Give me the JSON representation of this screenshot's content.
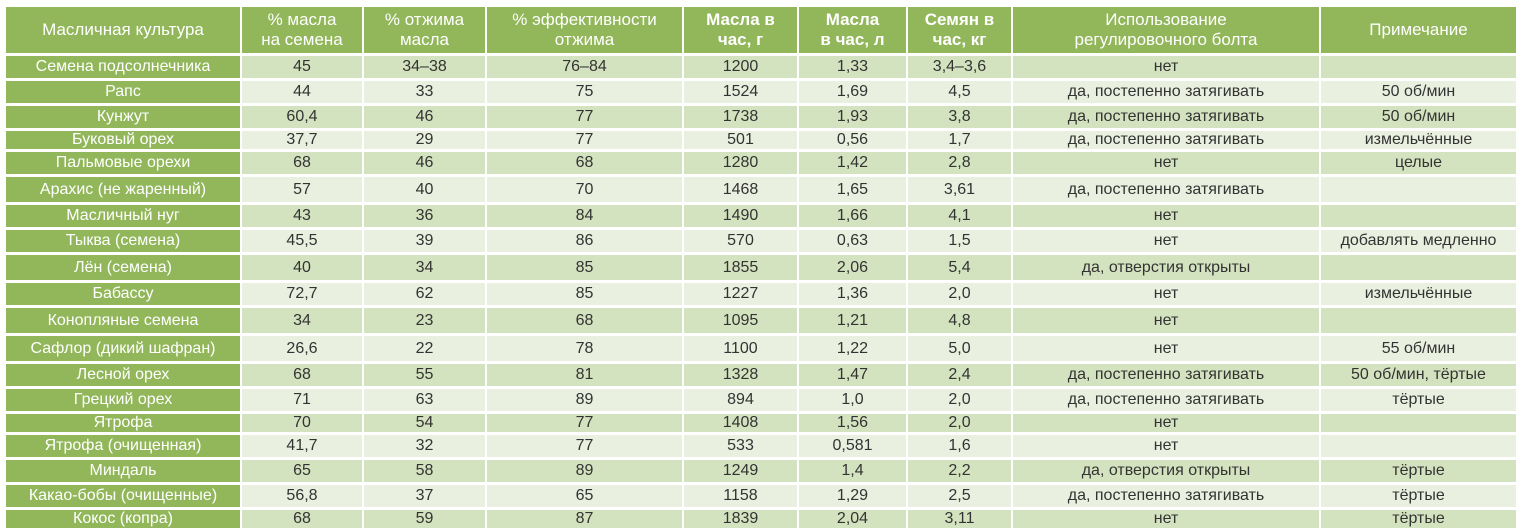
{
  "headers": [
    {
      "line1": "Масличная культура",
      "line2": ""
    },
    {
      "line1": "% масла",
      "line2": "на семена"
    },
    {
      "line1": "% отжима",
      "line2": "масла"
    },
    {
      "line1": "% эффективности",
      "line2": "отжима"
    },
    {
      "line1": "Масла в",
      "line2": "час, г"
    },
    {
      "line1": "Масла",
      "line2": "в час, л"
    },
    {
      "line1": "Семян в",
      "line2": "час, кг"
    },
    {
      "line1": "Использование",
      "line2": "регулировочного болта"
    },
    {
      "line1": "Примечание",
      "line2": ""
    }
  ],
  "rows": [
    [
      "Семена подсолнечника",
      "45",
      "34–38",
      "76–84",
      "1200",
      "1,33",
      "3,4–3,6",
      "нет",
      ""
    ],
    [
      "Рапс",
      "44",
      "33",
      "75",
      "1524",
      "1,69",
      "4,5",
      "да, постепенно затягивать",
      "50 об/мин"
    ],
    [
      "Кунжут",
      "60,4",
      "46",
      "77",
      "1738",
      "1,93",
      "3,8",
      "да, постепенно затягивать",
      "50 об/мин"
    ],
    [
      "Буковый орех",
      "37,7",
      "29",
      "77",
      "501",
      "0,56",
      "1,7",
      "да, постепенно затягивать",
      "измельчённые"
    ],
    [
      "Пальмовые орехи",
      "68",
      "46",
      "68",
      "1280",
      "1,42",
      "2,8",
      "нет",
      "целые"
    ],
    [
      "Арахис (не жаренный)",
      "57",
      "40",
      "70",
      "1468",
      "1,65",
      "3,61",
      "да, постепенно затягивать",
      ""
    ],
    [
      "Масличный нуг",
      "43",
      "36",
      "84",
      "1490",
      "1,66",
      "4,1",
      "нет",
      ""
    ],
    [
      "Тыква (семена)",
      "45,5",
      "39",
      "86",
      "570",
      "0,63",
      "1,5",
      "нет",
      "добавлять медленно"
    ],
    [
      "Лён (семена)",
      "40",
      "34",
      "85",
      "1855",
      "2,06",
      "5,4",
      "да, отверстия открыты",
      ""
    ],
    [
      "Бабассу",
      "72,7",
      "62",
      "85",
      "1227",
      "1,36",
      "2,0",
      "нет",
      "измельчённые"
    ],
    [
      "Конопляные семена",
      "34",
      "23",
      "68",
      "1095",
      "1,21",
      "4,8",
      "нет",
      ""
    ],
    [
      "Сафлор (дикий шафран)",
      "26,6",
      "22",
      "78",
      "1100",
      "1,22",
      "5,0",
      "нет",
      "55 об/мин"
    ],
    [
      "Лесной орех",
      "68",
      "55",
      "81",
      "1328",
      "1,47",
      "2,4",
      "да, постепенно затягивать",
      "50 об/мин, тёртые"
    ],
    [
      "Грецкий орех",
      "71",
      "63",
      "89",
      "894",
      "1,0",
      "2,0",
      "да, постепенно затягивать",
      "тёртые"
    ],
    [
      "Ятрофа",
      "70",
      "54",
      "77",
      "1408",
      "1,56",
      "2,0",
      "нет",
      ""
    ],
    [
      "Ятрофа (очищенная)",
      "41,7",
      "32",
      "77",
      "533",
      "0,581",
      "1,6",
      "нет",
      ""
    ],
    [
      "Миндаль",
      "65",
      "58",
      "89",
      "1249",
      "1,4",
      "2,2",
      "да, отверстия открыты",
      "тёртые"
    ],
    [
      "Какао-бобы (очищенные)",
      "56,8",
      "37",
      "65",
      "1158",
      "1,29",
      "2,5",
      "да, постепенно затягивать",
      "тёртые"
    ],
    [
      "Кокос (копра)",
      "68",
      "59",
      "87",
      "1839",
      "2,04",
      "3,11",
      "нет",
      "тёртые"
    ]
  ]
}
